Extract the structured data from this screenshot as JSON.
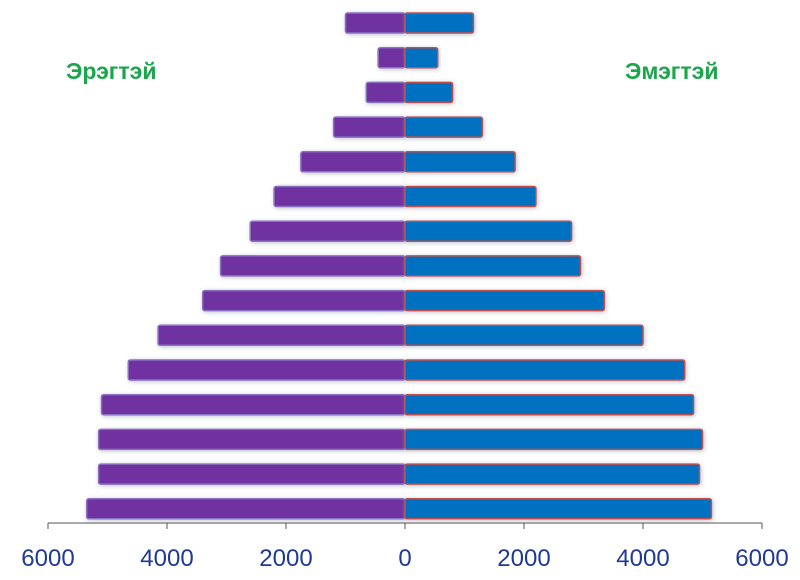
{
  "chart_data": {
    "type": "bar",
    "orientation": "horizontal",
    "layout": "population-pyramid",
    "series": [
      {
        "name": "Эрэгтэй",
        "side": "left",
        "color": "#7030a0",
        "values": [
          1000,
          450,
          650,
          1200,
          1750,
          2200,
          2600,
          3100,
          3400,
          4150,
          4650,
          5100,
          5150,
          5150,
          5350
        ]
      },
      {
        "name": "Эмэгтэй",
        "side": "right",
        "color": "#0070c0",
        "values": [
          1150,
          550,
          800,
          1300,
          1850,
          2200,
          2800,
          2950,
          3350,
          4000,
          4700,
          4850,
          5000,
          4950,
          5150
        ]
      }
    ],
    "xlim": [
      -6000,
      6000
    ],
    "x_ticks": [
      -6000,
      -4000,
      -2000,
      0,
      2000,
      4000,
      6000
    ],
    "x_tick_labels": [
      "6000",
      "4000",
      "2000",
      "0",
      "2000",
      "4000",
      "6000"
    ],
    "grid": false,
    "legend_position": "top",
    "label_color": "#1aa64a"
  }
}
